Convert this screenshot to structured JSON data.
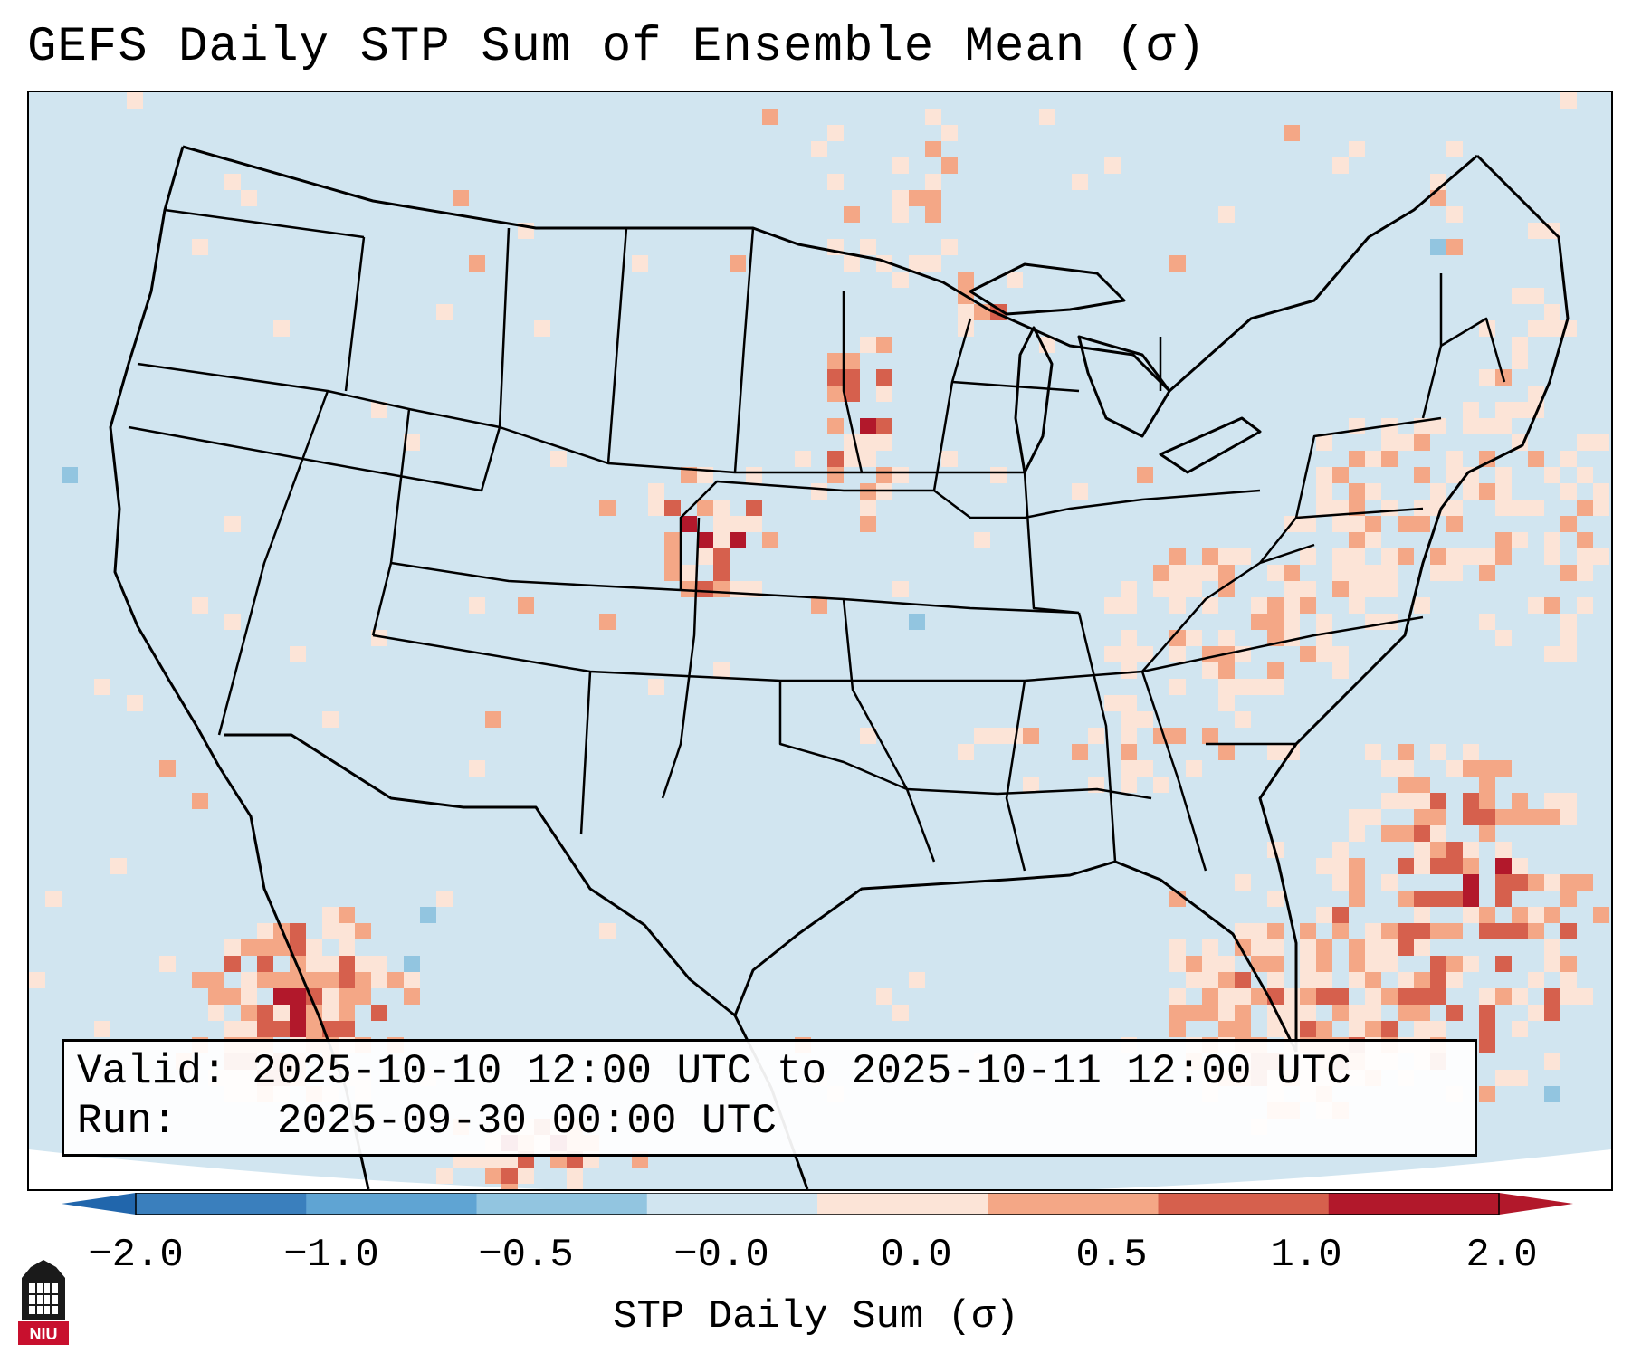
{
  "title": "GEFS Daily STP Sum of Ensemble Mean (σ)",
  "info": {
    "valid_label": "Valid:",
    "valid_value": "2025-10-10 12:00 UTC to 2025-10-11 12:00 UTC",
    "run_label": "Run:",
    "run_value": "2025-09-30 00:00 UTC"
  },
  "colorbar": {
    "label": "STP Daily Sum (σ)",
    "ticks": [
      "−2.0",
      "−1.0",
      "−0.5",
      "−0.0",
      "0.0",
      "0.5",
      "1.0",
      "2.0"
    ],
    "colors": [
      "#3a7fbd",
      "#5fa4d3",
      "#92c5e0",
      "#d1e5f0",
      "#fce4d7",
      "#f4a786",
      "#d6604d",
      "#b2182b"
    ],
    "under_color": "#2166ac",
    "over_color": "#b2182b"
  },
  "map": {
    "background_color": "#d1e5f0",
    "region": "Contiguous United States",
    "hotspots": [
      {
        "name": "gulf-of-california-hotspot",
        "intensity": "2.0"
      },
      {
        "name": "southeast-mexico-hotspot",
        "intensity": "1.0"
      },
      {
        "name": "florida-western-atlantic-hotspot",
        "intensity": "1.0"
      },
      {
        "name": "central-plains-hotspot",
        "intensity": "1.0"
      },
      {
        "name": "ohio-valley-hotspot",
        "intensity": "0.5"
      }
    ]
  },
  "logo": {
    "text": "NIU",
    "color": "#c8102e"
  }
}
